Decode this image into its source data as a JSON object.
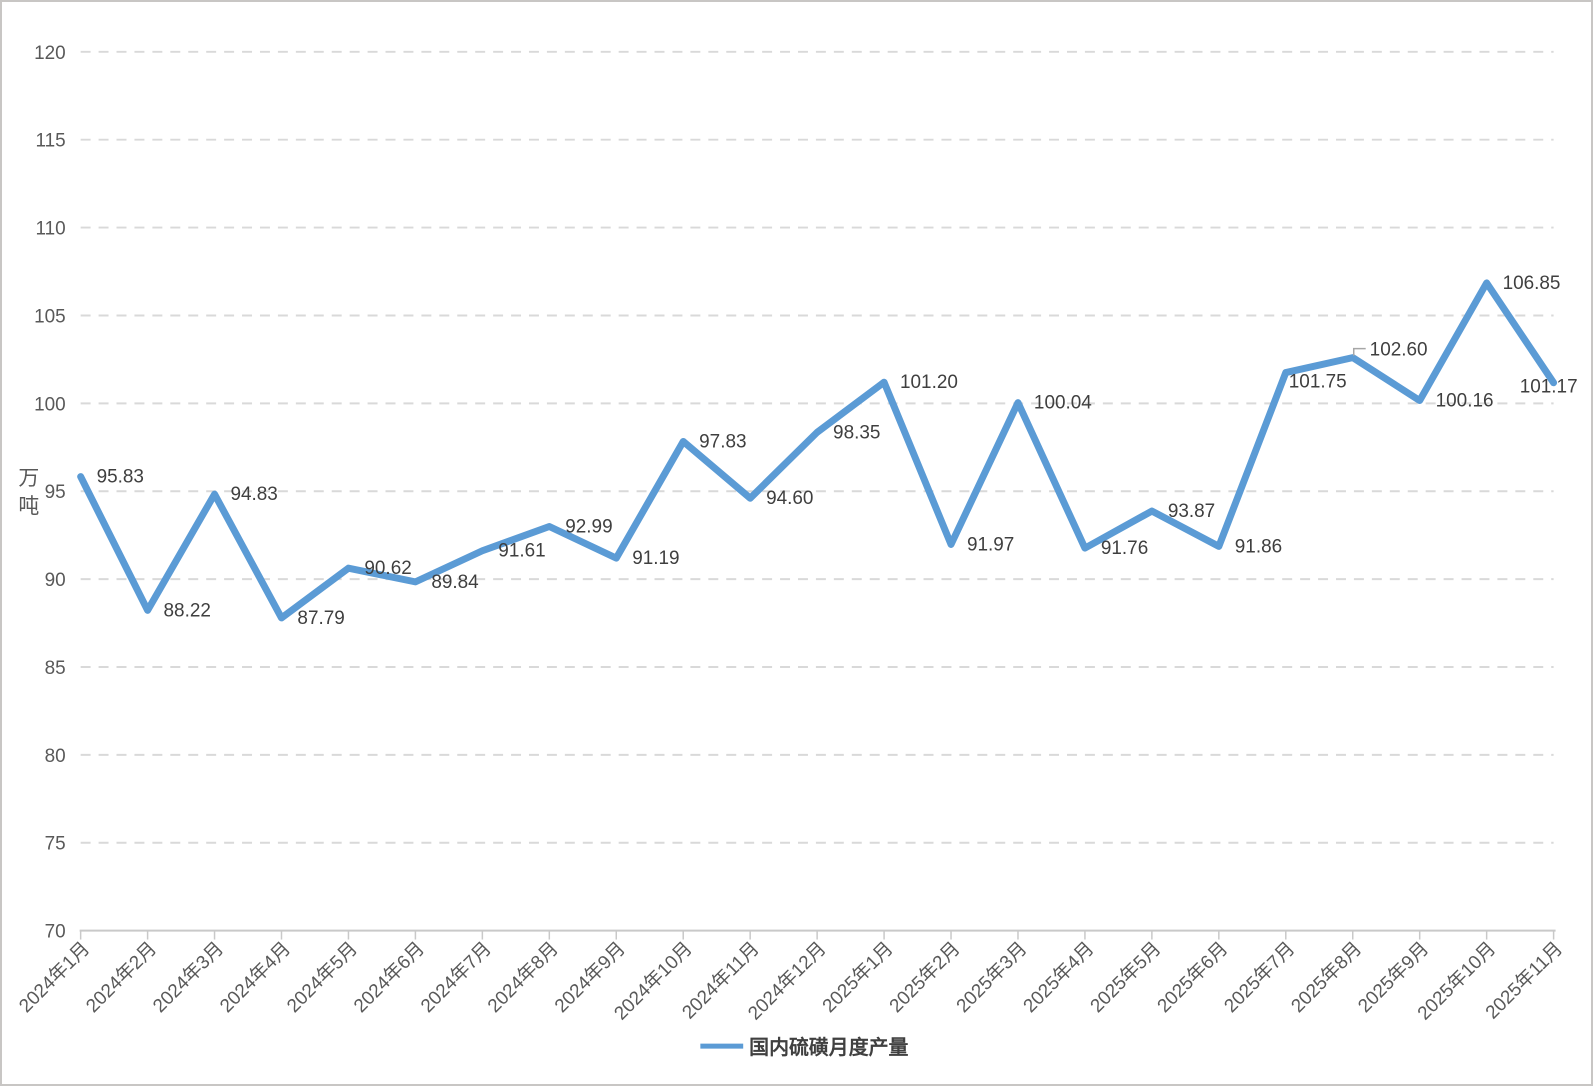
{
  "colors": {
    "accent": "#5B9BD5",
    "grid": "#D9D9D9",
    "axis": "#C9C9C9",
    "axis_text": "#595959",
    "data_label_text": "#3F3F3F",
    "legend_text": "#404040",
    "leader": "#A6A6A6",
    "frame_border": "#C8C6C4"
  },
  "chart_data": {
    "type": "line",
    "title": "",
    "xlabel": "",
    "ylabel": "万吨",
    "ylim": [
      70,
      120
    ],
    "ytick_step": 5,
    "grid": "horizontal-dashed",
    "legend_position": "bottom-center",
    "data_labels": true,
    "label_decimals": 2,
    "categories": [
      "2024年1月",
      "2024年2月",
      "2024年3月",
      "2024年4月",
      "2024年5月",
      "2024年6月",
      "2024年7月",
      "2024年8月",
      "2024年9月",
      "2024年10月",
      "2024年11月",
      "2024年12月",
      "2025年1月",
      "2025年2月",
      "2025年3月",
      "2025年4月",
      "2025年5月",
      "2025年6月",
      "2025年7月",
      "2025年8月",
      "2025年9月",
      "2025年10月",
      "2025年11月"
    ],
    "series": [
      {
        "name": "国内硫磺月度产量",
        "color": "#5B9BD5",
        "values": [
          95.83,
          88.22,
          94.83,
          87.79,
          90.62,
          89.84,
          91.61,
          92.99,
          91.19,
          97.83,
          94.6,
          98.35,
          101.2,
          91.97,
          100.04,
          91.76,
          93.87,
          91.86,
          101.75,
          102.6,
          100.16,
          106.85,
          101.17
        ]
      }
    ],
    "label_offsets": {
      "18": [
        3,
        15
      ],
      "19": [
        17,
        -2
      ],
      "22": [
        -34,
        10
      ]
    },
    "leader_line_indices": [
      19
    ]
  }
}
